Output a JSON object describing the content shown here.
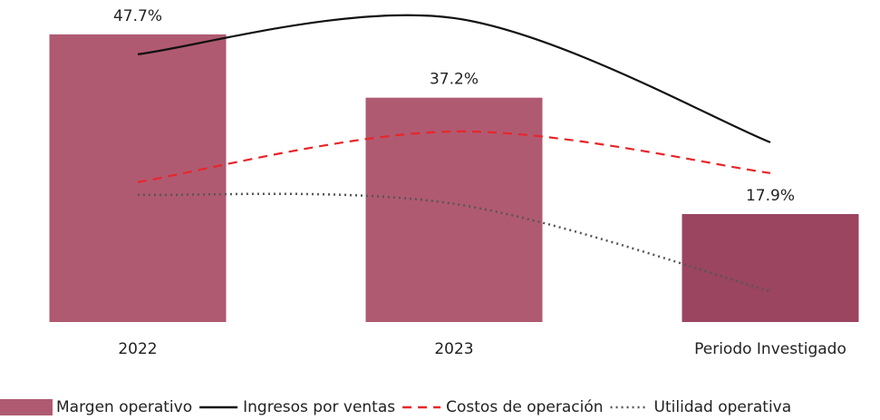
{
  "chart_data": {
    "type": "bar",
    "categories": [
      "2022",
      "2023",
      "Periodo Investigado"
    ],
    "ylim": [
      0,
      53.4
    ],
    "series": [
      {
        "name": "Margen operativo",
        "type": "bar",
        "color": "#b05a72",
        "colors": [
          "#b05a72",
          "#b05a72",
          "#9b4560"
        ],
        "values": [
          47.7,
          37.2,
          17.9
        ],
        "value_labels": [
          "47.7%",
          "37.2%",
          "17.9%"
        ]
      },
      {
        "name": "Ingresos por ventas",
        "type": "line",
        "color": "#111111",
        "dash": "solid",
        "values": [
          44.4,
          50.4,
          29.8
        ]
      },
      {
        "name": "Costos de operación",
        "type": "line",
        "color": "#e8262a",
        "dash": "dashed",
        "values": [
          23.2,
          31.6,
          24.7
        ]
      },
      {
        "name": "Utilidad operativa",
        "type": "line",
        "color": "#555555",
        "dash": "dotted",
        "values": [
          21.1,
          19.6,
          5.1
        ]
      }
    ],
    "legend": "bottom"
  }
}
